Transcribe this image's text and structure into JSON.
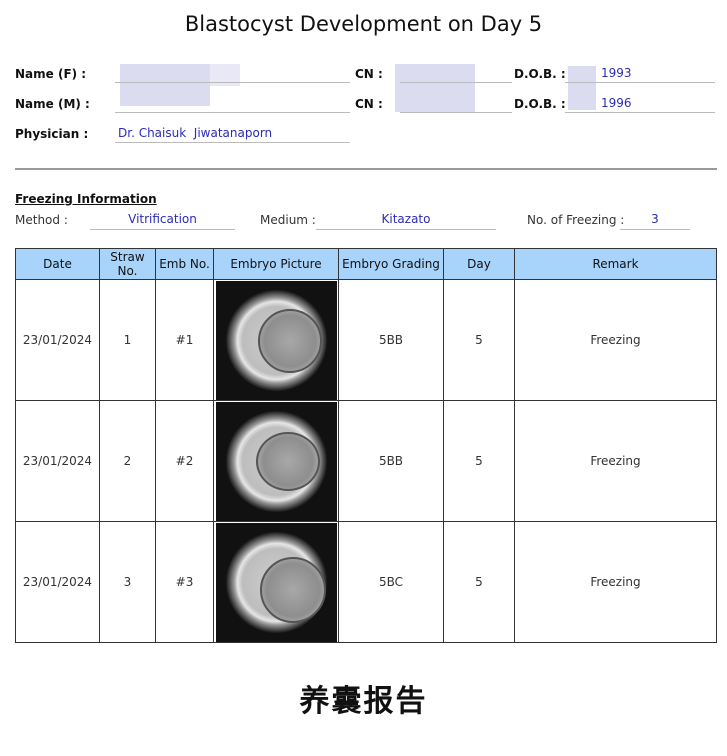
{
  "title": "Blastocyst Development on Day 5",
  "patient": {
    "name_f_label": "Name (F) :",
    "name_m_label": "Name (M) :",
    "cn_label": "CN :",
    "dob_label": "D.O.B. :",
    "dob_f": "1993",
    "dob_m": "1996",
    "physician_label": "Physician :",
    "physician": "Dr. Chaisuk  Jiwatanaporn"
  },
  "freezing": {
    "heading": "Freezing Information",
    "method_label": "Method :",
    "method": "Vitrification",
    "medium_label": "Medium :",
    "medium": "Kitazato",
    "count_label": "No. of Freezing :",
    "count": "3"
  },
  "table": {
    "headers": [
      "Date",
      "Straw No.",
      "Emb No.",
      "Embryo Picture",
      "Embryo Grading",
      "Day",
      "Remark"
    ],
    "rows": [
      {
        "date": "23/01/2024",
        "straw": "1",
        "emb": "#1",
        "grading": "5BB",
        "day": "5",
        "remark": "Freezing"
      },
      {
        "date": "23/01/2024",
        "straw": "2",
        "emb": "#2",
        "grading": "5BB",
        "day": "5",
        "remark": "Freezing"
      },
      {
        "date": "23/01/2024",
        "straw": "3",
        "emb": "#3",
        "grading": "5BC",
        "day": "5",
        "remark": "Freezing"
      }
    ]
  },
  "footer": "养囊报告"
}
